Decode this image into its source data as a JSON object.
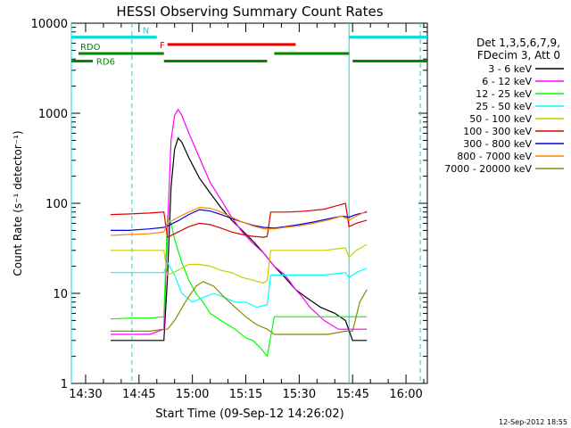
{
  "chart_data": {
    "type": "line",
    "title": "HESSI Observing Summary Count Rates",
    "xlabel": "Start Time (09-Sep-12 14:26:02)",
    "ylabel": "Count Rate (s⁻¹ detector⁻¹)",
    "yscale": "log",
    "ylim": [
      1,
      10000
    ],
    "xlim": [
      "14:26",
      "16:06"
    ],
    "x_ticks": [
      "14:30",
      "14:45",
      "15:00",
      "15:15",
      "15:30",
      "15:45",
      "16:00"
    ],
    "y_ticks": [
      "1",
      "10",
      "100",
      "1000",
      "10000"
    ],
    "footer_date": "12-Sep-2012 18:55",
    "legend_header": [
      "Det 1,3,5,6,7,9,",
      "FDecim 3, Att 0"
    ],
    "legend": [
      {
        "label": "3 - 6 keV",
        "color": "#000000"
      },
      {
        "label": "6 - 12 keV",
        "color": "#ff00ff"
      },
      {
        "label": "12 - 25 keV",
        "color": "#00ff00"
      },
      {
        "label": "25 - 50 keV",
        "color": "#00ffff"
      },
      {
        "label": "50 - 100 keV",
        "color": "#cccc00"
      },
      {
        "label": "100 - 300 keV",
        "color": "#dd0000"
      },
      {
        "label": "300 - 800 keV",
        "color": "#0000dd"
      },
      {
        "label": "800 - 7000 keV",
        "color": "#ff8800"
      },
      {
        "label": "7000 - 20000 keV",
        "color": "#888800"
      }
    ],
    "flags": [
      {
        "label": "N",
        "color": "#00dddd",
        "value": 7000,
        "segments": [
          [
            "14:26",
            "14:50"
          ],
          [
            "15:44",
            "16:06"
          ]
        ]
      },
      {
        "label": "F",
        "color": "#ee0000",
        "value": 5800,
        "segments": [
          [
            "14:53",
            "15:29"
          ]
        ]
      },
      {
        "label": "RDO",
        "color": "#008800",
        "value": 4600,
        "segments": [
          [
            "14:28",
            "14:52"
          ],
          [
            "15:23",
            "15:44"
          ]
        ]
      },
      {
        "label": "RD6",
        "color": "#008800",
        "value": 3800,
        "segments": [
          [
            "14:26",
            "14:32"
          ],
          [
            "14:52",
            "15:21"
          ],
          [
            "15:45",
            "16:06"
          ]
        ]
      }
    ],
    "vlines": [
      {
        "x": "14:26",
        "color": "#00dddd",
        "style": "solid"
      },
      {
        "x": "14:43",
        "color": "#00dddd",
        "style": "dashed"
      },
      {
        "x": "15:44",
        "color": "#00dddd",
        "style": "solid"
      },
      {
        "x": "16:04",
        "color": "#00dddd",
        "style": "dashed"
      }
    ],
    "series": [
      {
        "name": "3 - 6 keV",
        "color": "#000000",
        "points": [
          [
            "14:37",
            3
          ],
          [
            "14:40",
            3
          ],
          [
            "14:45",
            3
          ],
          [
            "14:49",
            3
          ],
          [
            "14:52",
            3
          ],
          [
            "14:53",
            15
          ],
          [
            "14:54",
            150
          ],
          [
            "14:55",
            400
          ],
          [
            "14:56",
            530
          ],
          [
            "14:57",
            480
          ],
          [
            "14:59",
            320
          ],
          [
            "15:02",
            190
          ],
          [
            "15:05",
            130
          ],
          [
            "15:08",
            90
          ],
          [
            "15:11",
            65
          ],
          [
            "15:14",
            50
          ],
          [
            "15:17",
            38
          ],
          [
            "15:20",
            28
          ],
          [
            "15:23",
            20
          ],
          [
            "15:26",
            15
          ],
          [
            "15:29",
            11
          ],
          [
            "15:32",
            9
          ],
          [
            "15:36",
            7
          ],
          [
            "15:40",
            6
          ],
          [
            "15:43",
            5
          ],
          [
            "15:45",
            3
          ],
          [
            "15:47",
            3
          ],
          [
            "15:49",
            3
          ]
        ]
      },
      {
        "name": "6 - 12 keV",
        "color": "#ff00ff",
        "points": [
          [
            "14:37",
            3.5
          ],
          [
            "14:42",
            3.5
          ],
          [
            "14:48",
            3.5
          ],
          [
            "14:52",
            4
          ],
          [
            "14:53",
            50
          ],
          [
            "14:54",
            500
          ],
          [
            "14:55",
            950
          ],
          [
            "14:56",
            1100
          ],
          [
            "14:57",
            950
          ],
          [
            "14:59",
            600
          ],
          [
            "15:02",
            320
          ],
          [
            "15:05",
            170
          ],
          [
            "15:08",
            110
          ],
          [
            "15:11",
            70
          ],
          [
            "15:14",
            48
          ],
          [
            "15:17",
            36
          ],
          [
            "15:20",
            28
          ],
          [
            "15:23",
            20
          ],
          [
            "15:26",
            16
          ],
          [
            "15:29",
            11
          ],
          [
            "15:31",
            9
          ],
          [
            "15:33",
            7
          ],
          [
            "15:37",
            5
          ],
          [
            "15:41",
            4
          ],
          [
            "15:45",
            4
          ],
          [
            "15:49",
            4
          ]
        ]
      },
      {
        "name": "12 - 25 keV",
        "color": "#00ff00",
        "points": [
          [
            "14:37",
            5.2
          ],
          [
            "14:42",
            5.3
          ],
          [
            "14:48",
            5.3
          ],
          [
            "14:52",
            5.5
          ],
          [
            "14:53",
            70
          ],
          [
            "14:54",
            60
          ],
          [
            "14:55",
            40
          ],
          [
            "14:57",
            22
          ],
          [
            "14:59",
            14
          ],
          [
            "15:01",
            10
          ],
          [
            "15:03",
            8
          ],
          [
            "15:05",
            6
          ],
          [
            "15:08",
            5
          ],
          [
            "15:12",
            4
          ],
          [
            "15:15",
            3.2
          ],
          [
            "15:17",
            3
          ],
          [
            "15:19",
            2.5
          ],
          [
            "15:21",
            2
          ],
          [
            "15:23",
            5.5
          ],
          [
            "15:30",
            5.5
          ],
          [
            "15:37",
            5.5
          ],
          [
            "15:43",
            5.5
          ],
          [
            "15:45",
            5.5
          ],
          [
            "15:47",
            5.5
          ],
          [
            "15:49",
            5.5
          ]
        ]
      },
      {
        "name": "25 - 50 keV",
        "color": "#00ffff",
        "points": [
          [
            "14:37",
            17
          ],
          [
            "14:42",
            17
          ],
          [
            "14:48",
            17
          ],
          [
            "14:52",
            17
          ],
          [
            "14:53",
            22
          ],
          [
            "14:55",
            16
          ],
          [
            "14:57",
            10
          ],
          [
            "15:00",
            8
          ],
          [
            "15:03",
            9
          ],
          [
            "15:06",
            10
          ],
          [
            "15:09",
            9
          ],
          [
            "15:12",
            8
          ],
          [
            "15:15",
            8
          ],
          [
            "15:18",
            7
          ],
          [
            "15:21",
            7.5
          ],
          [
            "15:22",
            16
          ],
          [
            "15:27",
            16
          ],
          [
            "15:32",
            16
          ],
          [
            "15:37",
            16
          ],
          [
            "15:43",
            17
          ],
          [
            "15:44",
            15
          ],
          [
            "15:46",
            17
          ],
          [
            "15:49",
            19
          ]
        ]
      },
      {
        "name": "50 - 100 keV",
        "color": "#cccc00",
        "points": [
          [
            "14:37",
            30
          ],
          [
            "14:42",
            30
          ],
          [
            "14:48",
            30
          ],
          [
            "14:52",
            30
          ],
          [
            "14:53",
            16
          ],
          [
            "14:56",
            18
          ],
          [
            "14:59",
            21
          ],
          [
            "15:02",
            21
          ],
          [
            "15:05",
            20
          ],
          [
            "15:08",
            18
          ],
          [
            "15:11",
            17
          ],
          [
            "15:14",
            15
          ],
          [
            "15:17",
            14
          ],
          [
            "15:20",
            13
          ],
          [
            "15:21",
            14
          ],
          [
            "15:22",
            30
          ],
          [
            "15:27",
            30
          ],
          [
            "15:32",
            30
          ],
          [
            "15:37",
            30
          ],
          [
            "15:43",
            32
          ],
          [
            "15:44",
            25
          ],
          [
            "15:46",
            30
          ],
          [
            "15:49",
            35
          ]
        ]
      },
      {
        "name": "100 - 300 keV",
        "color": "#dd0000",
        "points": [
          [
            "14:37",
            75
          ],
          [
            "14:42",
            76
          ],
          [
            "14:48",
            78
          ],
          [
            "14:52",
            80
          ],
          [
            "14:53",
            42
          ],
          [
            "14:56",
            48
          ],
          [
            "14:59",
            55
          ],
          [
            "15:02",
            60
          ],
          [
            "15:05",
            58
          ],
          [
            "15:08",
            53
          ],
          [
            "15:11",
            48
          ],
          [
            "15:14",
            45
          ],
          [
            "15:17",
            43
          ],
          [
            "15:20",
            42
          ],
          [
            "15:21",
            43
          ],
          [
            "15:22",
            80
          ],
          [
            "15:27",
            80
          ],
          [
            "15:32",
            82
          ],
          [
            "15:37",
            86
          ],
          [
            "15:43",
            100
          ],
          [
            "15:44",
            55
          ],
          [
            "15:46",
            60
          ],
          [
            "15:49",
            65
          ]
        ]
      },
      {
        "name": "300 - 800 keV",
        "color": "#0000dd",
        "points": [
          [
            "14:37",
            50
          ],
          [
            "14:42",
            50
          ],
          [
            "14:48",
            52
          ],
          [
            "14:52",
            54
          ],
          [
            "14:53",
            56
          ],
          [
            "14:56",
            64
          ],
          [
            "14:59",
            75
          ],
          [
            "15:02",
            85
          ],
          [
            "15:05",
            82
          ],
          [
            "15:08",
            75
          ],
          [
            "15:11",
            68
          ],
          [
            "15:14",
            62
          ],
          [
            "15:17",
            57
          ],
          [
            "15:20",
            54
          ],
          [
            "15:23",
            53
          ],
          [
            "15:26",
            55
          ],
          [
            "15:30",
            58
          ],
          [
            "15:34",
            62
          ],
          [
            "15:38",
            67
          ],
          [
            "15:42",
            72
          ],
          [
            "15:44",
            70
          ],
          [
            "15:46",
            75
          ],
          [
            "15:49",
            80
          ]
        ]
      },
      {
        "name": "800 - 7000 keV",
        "color": "#ff8800",
        "points": [
          [
            "14:37",
            44
          ],
          [
            "14:42",
            45
          ],
          [
            "14:48",
            46
          ],
          [
            "14:52",
            48
          ],
          [
            "14:53",
            60
          ],
          [
            "14:56",
            70
          ],
          [
            "14:59",
            80
          ],
          [
            "15:02",
            90
          ],
          [
            "15:05",
            88
          ],
          [
            "15:08",
            80
          ],
          [
            "15:11",
            70
          ],
          [
            "15:14",
            62
          ],
          [
            "15:17",
            56
          ],
          [
            "15:20",
            52
          ],
          [
            "15:23",
            52
          ],
          [
            "15:26",
            54
          ],
          [
            "15:30",
            56
          ],
          [
            "15:34",
            60
          ],
          [
            "15:38",
            65
          ],
          [
            "15:42",
            72
          ],
          [
            "15:44",
            65
          ],
          [
            "15:46",
            72
          ],
          [
            "15:49",
            82
          ]
        ]
      },
      {
        "name": "7000 - 20000 keV",
        "color": "#888800",
        "points": [
          [
            "14:37",
            3.8
          ],
          [
            "14:42",
            3.8
          ],
          [
            "14:48",
            3.8
          ],
          [
            "14:52",
            4
          ],
          [
            "14:53",
            4
          ],
          [
            "14:55",
            5
          ],
          [
            "14:58",
            8
          ],
          [
            "15:01",
            12
          ],
          [
            "15:03",
            13.5
          ],
          [
            "15:06",
            12
          ],
          [
            "15:09",
            9
          ],
          [
            "15:12",
            7
          ],
          [
            "15:15",
            5.5
          ],
          [
            "15:18",
            4.5
          ],
          [
            "15:21",
            4
          ],
          [
            "15:23",
            3.5
          ],
          [
            "15:28",
            3.5
          ],
          [
            "15:33",
            3.5
          ],
          [
            "15:38",
            3.5
          ],
          [
            "15:43",
            3.8
          ],
          [
            "15:45",
            3.8
          ],
          [
            "15:47",
            8
          ],
          [
            "15:49",
            11
          ]
        ]
      }
    ]
  }
}
